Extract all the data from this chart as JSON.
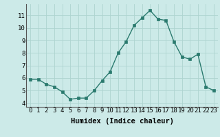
{
  "x": [
    0,
    1,
    2,
    3,
    4,
    5,
    6,
    7,
    8,
    9,
    10,
    11,
    12,
    13,
    14,
    15,
    16,
    17,
    18,
    19,
    20,
    21,
    22,
    23
  ],
  "y": [
    5.9,
    5.9,
    5.5,
    5.3,
    4.9,
    4.3,
    4.4,
    4.4,
    5.0,
    5.8,
    6.5,
    8.0,
    8.9,
    10.2,
    10.8,
    11.4,
    10.7,
    10.6,
    8.9,
    7.7,
    7.5,
    7.9,
    5.3,
    5.0
  ],
  "line_color": "#2a7a6e",
  "marker_color": "#2a7a6e",
  "bg_color": "#cceae8",
  "grid_color": "#aed4d0",
  "xlabel": "Humidex (Indice chaleur)",
  "xlim": [
    -0.5,
    23.5
  ],
  "ylim": [
    3.7,
    11.9
  ],
  "yticks": [
    4,
    5,
    6,
    7,
    8,
    9,
    10,
    11
  ],
  "xticks": [
    0,
    1,
    2,
    3,
    4,
    5,
    6,
    7,
    8,
    9,
    10,
    11,
    12,
    13,
    14,
    15,
    16,
    17,
    18,
    19,
    20,
    21,
    22,
    23
  ],
  "tick_label_fontsize": 6.5,
  "xlabel_fontsize": 7.5,
  "linewidth": 1.0,
  "markersize": 2.5
}
